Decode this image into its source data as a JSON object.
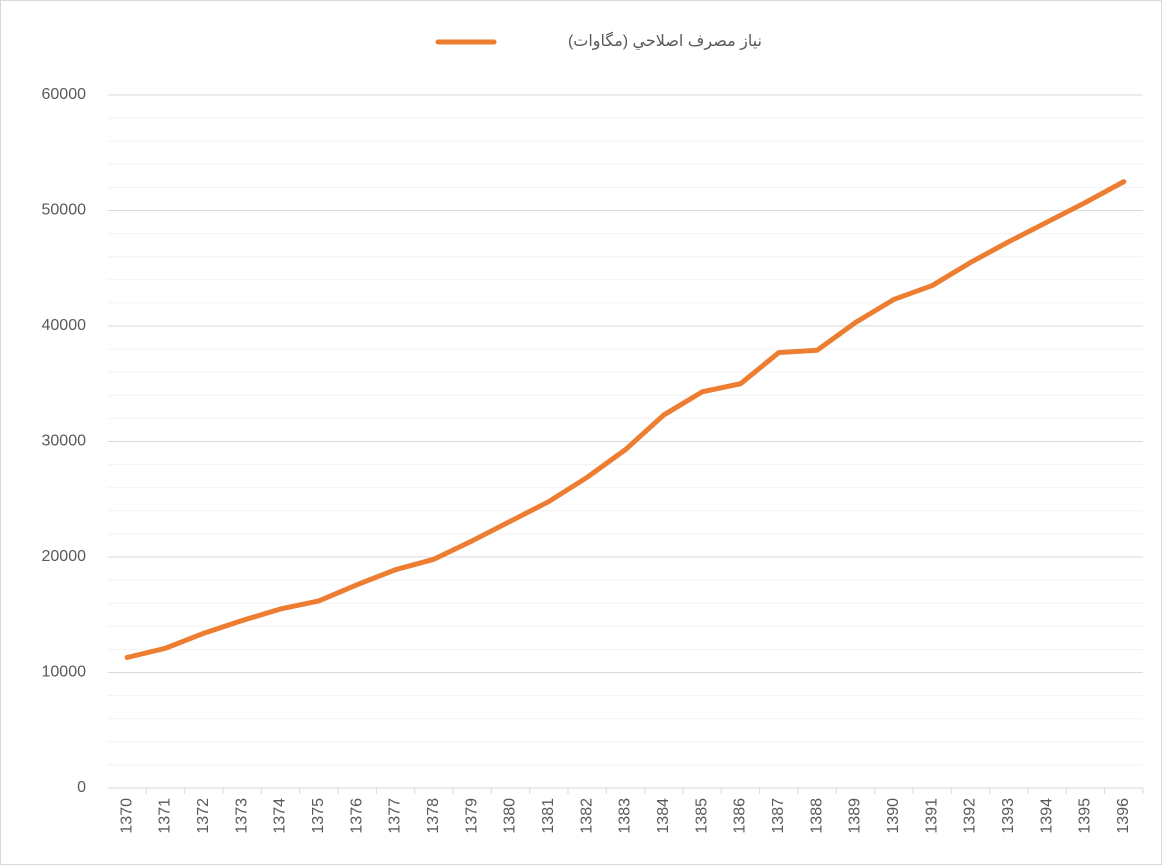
{
  "chart_data": {
    "type": "line",
    "categories": [
      "1370",
      "1371",
      "1372",
      "1373",
      "1374",
      "1375",
      "1376",
      "1377",
      "1378",
      "1379",
      "1380",
      "1381",
      "1382",
      "1383",
      "1384",
      "1385",
      "1386",
      "1387",
      "1388",
      "1389",
      "1390",
      "1391",
      "1392",
      "1393",
      "1394",
      "1395",
      "1396"
    ],
    "series": [
      {
        "name": "نیاز مصرف اصلاحي (مگاوات)",
        "color": "#ed7d31",
        "values": [
          11300,
          12100,
          13400,
          14500,
          15500,
          16200,
          17600,
          18900,
          19800,
          21400,
          23100,
          24800,
          26900,
          29300,
          32300,
          34300,
          35000,
          37700,
          37900,
          40300,
          42300,
          43500,
          45500,
          47300,
          49000,
          50700,
          52500
        ]
      }
    ],
    "ylim": [
      0,
      60000
    ],
    "yticks": [
      0,
      10000,
      20000,
      30000,
      40000,
      50000,
      60000
    ],
    "minor_yticks": [
      2000,
      4000,
      6000,
      8000,
      12000,
      14000,
      16000,
      18000,
      22000,
      24000,
      26000,
      28000,
      32000,
      34000,
      36000,
      38000,
      42000,
      44000,
      46000,
      48000,
      52000,
      54000,
      56000,
      58000
    ],
    "grid": true,
    "legend": "top"
  }
}
